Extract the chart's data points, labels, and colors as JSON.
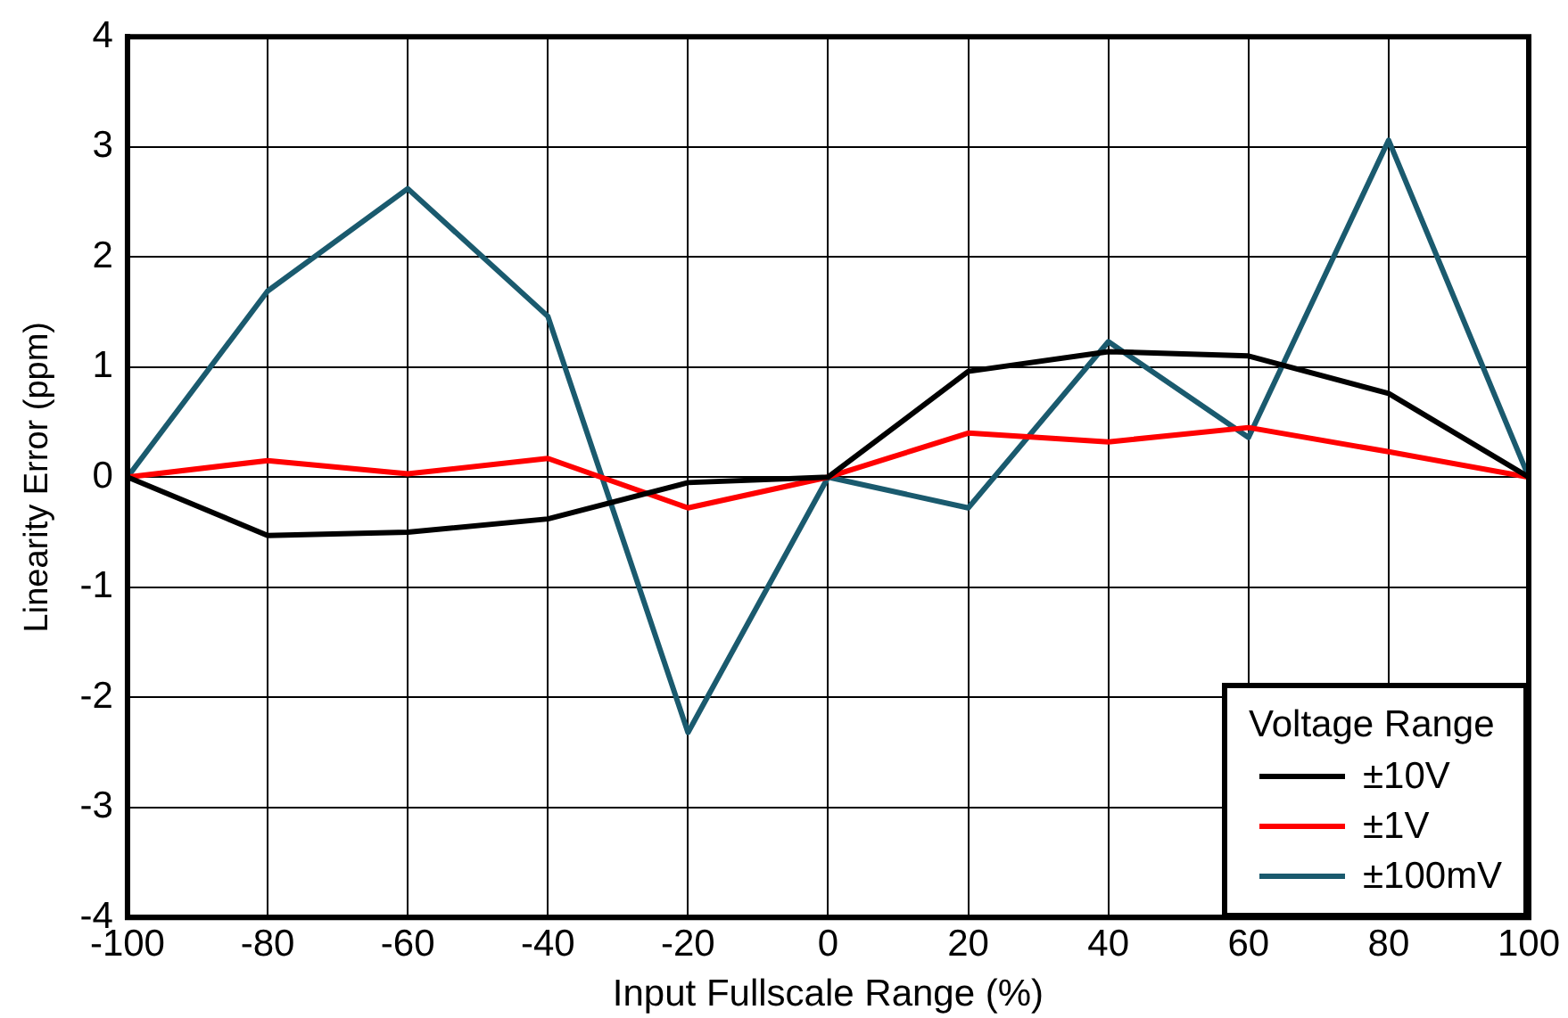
{
  "chart_data": {
    "type": "line",
    "xlabel": "Input Fullscale Range (%)",
    "ylabel": "Linearity Error (ppm)",
    "x": [
      -100,
      -80,
      -60,
      -40,
      -20,
      0,
      20,
      40,
      60,
      80,
      100
    ],
    "series": [
      {
        "name": "±10V",
        "color": "#000000",
        "values": [
          0,
          -0.53,
          -0.5,
          -0.38,
          -0.05,
          0,
          0.96,
          1.14,
          1.1,
          0.76,
          0
        ]
      },
      {
        "name": "±1V",
        "color": "#ff0000",
        "values": [
          0,
          0.15,
          0.03,
          0.17,
          -0.28,
          0,
          0.4,
          0.32,
          0.45,
          0.23,
          0
        ]
      },
      {
        "name": "±100mV",
        "color": "#1a5a6e",
        "values": [
          0,
          1.69,
          2.62,
          1.46,
          -2.32,
          0,
          -0.28,
          1.23,
          0.36,
          3.06,
          0
        ]
      }
    ],
    "xlim": [
      -100,
      100
    ],
    "xticks": [
      -100,
      -80,
      -60,
      -40,
      -20,
      0,
      20,
      40,
      60,
      80,
      100
    ],
    "ylim": [
      -4,
      4
    ],
    "yticks": [
      -4,
      -3,
      -2,
      -1,
      0,
      1,
      2,
      3,
      4
    ],
    "grid": true,
    "legend": "bottom right",
    "legend_title": "Voltage Range",
    "marker": "none",
    "line_style": "solid"
  }
}
